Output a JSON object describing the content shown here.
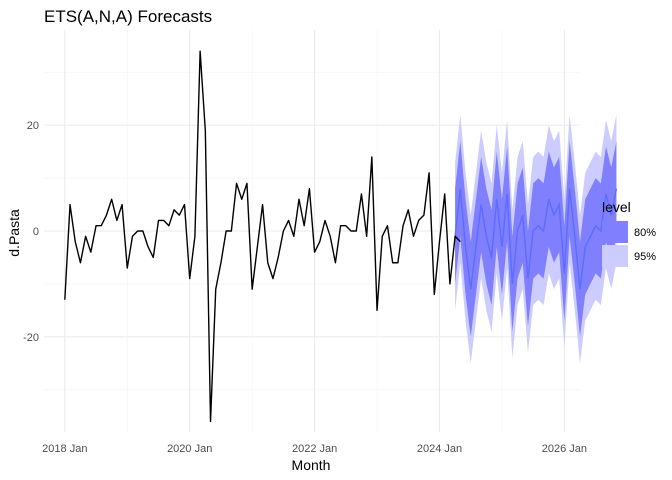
{
  "chart_data": {
    "type": "line",
    "title": "ETS(A,N,A) Forecasts",
    "xlabel": "Month",
    "ylabel": "d.Pasta",
    "x_start": "2018-01",
    "xlim": [
      "2017-09",
      "2026-04"
    ],
    "ylim": [
      -38,
      38
    ],
    "x_ticks": [
      "2018 Jan",
      "2020 Jan",
      "2022 Jan",
      "2024 Jan",
      "2026 Jan"
    ],
    "y_ticks": [
      -20,
      0,
      20
    ],
    "grid": true,
    "legend": {
      "title": "level",
      "position": "right",
      "entries": [
        {
          "label": "80%",
          "color": "#8080ff"
        },
        {
          "label": "95%",
          "color": "#ccccff"
        }
      ]
    },
    "series": [
      {
        "role": "observed",
        "color": "#000000",
        "values": [
          -13,
          5,
          -2,
          -6,
          -1,
          -4,
          1,
          1,
          3,
          6,
          2,
          5,
          -7,
          -1,
          0,
          0,
          -3,
          -5,
          2,
          2,
          1,
          4,
          3,
          5,
          -9,
          -1,
          34,
          19,
          -36,
          -11,
          -6,
          0,
          0,
          9,
          6,
          9,
          -11,
          -3,
          5,
          -6,
          -9,
          -5,
          0,
          2,
          -1,
          6,
          1,
          8,
          -4,
          -2,
          2,
          -1,
          -6,
          1,
          1,
          0,
          0,
          7,
          -1,
          14,
          -15,
          -1,
          1,
          -6,
          -6,
          1,
          4,
          -1,
          2,
          3,
          11,
          -12,
          -2,
          7,
          -10,
          -1,
          -2
        ]
      },
      {
        "role": "forecast",
        "color": "#5b6cff",
        "values": [
          -1,
          8,
          -3,
          -11,
          -3,
          5,
          -1,
          -5,
          6,
          -3,
          7,
          -10,
          0,
          3,
          -9,
          0,
          1,
          0,
          6,
          3,
          5,
          -8,
          8,
          -1,
          -11,
          -3,
          -1,
          1,
          0,
          7,
          3,
          8
        ],
        "lower80": [
          -10,
          -1,
          -12,
          -20,
          -12,
          -4,
          -10,
          -14,
          -3,
          -12,
          -2,
          -19,
          -9,
          -6,
          -18,
          -9,
          -8,
          -9,
          -3,
          -6,
          -4,
          -17,
          -1,
          -10,
          -20,
          -12,
          -10,
          -8,
          -9,
          -2,
          -6,
          -1
        ],
        "upper80": [
          8,
          17,
          6,
          -2,
          6,
          14,
          8,
          4,
          15,
          6,
          16,
          -1,
          9,
          12,
          0,
          9,
          10,
          9,
          15,
          12,
          14,
          1,
          17,
          8,
          -2,
          6,
          8,
          10,
          9,
          16,
          12,
          17
        ],
        "lower95": [
          -15,
          -6,
          -17,
          -25,
          -17,
          -9,
          -15,
          -19,
          -8,
          -17,
          -7,
          -24,
          -14,
          -11,
          -23,
          -14,
          -13,
          -14,
          -8,
          -11,
          -9,
          -22,
          -6,
          -15,
          -25,
          -17,
          -15,
          -13,
          -14,
          -7,
          -11,
          -6
        ],
        "upper95": [
          13,
          22,
          11,
          3,
          11,
          19,
          13,
          9,
          20,
          11,
          21,
          4,
          14,
          17,
          5,
          14,
          15,
          14,
          20,
          17,
          19,
          6,
          22,
          13,
          3,
          11,
          13,
          15,
          14,
          21,
          17,
          22
        ]
      }
    ]
  }
}
